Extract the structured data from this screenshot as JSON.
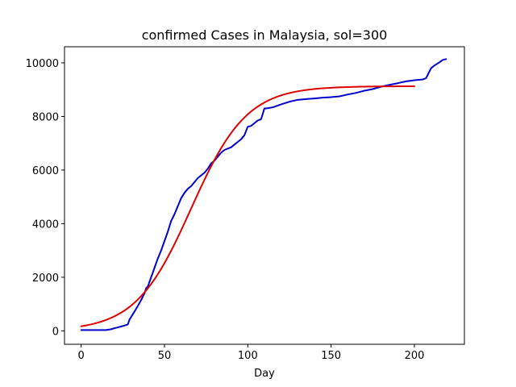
{
  "chart_data": {
    "type": "line",
    "title": "confirmed Cases in Malaysia, sol=300",
    "xlabel": "Day",
    "ylabel": "",
    "xlim": [
      -10,
      230
    ],
    "ylim": [
      -500,
      10600
    ],
    "xticks": [
      0,
      50,
      100,
      150,
      200
    ],
    "yticks": [
      0,
      2000,
      4000,
      6000,
      8000,
      10000
    ],
    "grid": false,
    "legend": "none",
    "series": [
      {
        "color": "#0000cc",
        "x": [
          0,
          5,
          10,
          15,
          18,
          20,
          22,
          25,
          28,
          29,
          30,
          32,
          34,
          36,
          38,
          39,
          40,
          41,
          42,
          44,
          46,
          48,
          50,
          52,
          54,
          56,
          58,
          60,
          62,
          64,
          66,
          68,
          70,
          72,
          74,
          76,
          78,
          80,
          82,
          84,
          86,
          88,
          90,
          92,
          94,
          96,
          98,
          100,
          101,
          102,
          104,
          106,
          108,
          110,
          111,
          112,
          115,
          120,
          125,
          130,
          135,
          140,
          145,
          150,
          155,
          160,
          165,
          170,
          175,
          180,
          185,
          190,
          195,
          200,
          205,
          207,
          208,
          210,
          212,
          215,
          217,
          219
        ],
        "y": [
          30,
          30,
          30,
          30,
          60,
          100,
          130,
          180,
          240,
          420,
          520,
          720,
          930,
          1150,
          1400,
          1590,
          1650,
          1830,
          2000,
          2350,
          2700,
          3000,
          3350,
          3700,
          4100,
          4350,
          4650,
          4950,
          5150,
          5300,
          5400,
          5550,
          5700,
          5800,
          5900,
          6050,
          6250,
          6350,
          6500,
          6650,
          6750,
          6800,
          6850,
          6950,
          7050,
          7150,
          7300,
          7620,
          7630,
          7650,
          7750,
          7850,
          7900,
          8300,
          8300,
          8310,
          8340,
          8450,
          8550,
          8620,
          8650,
          8670,
          8700,
          8720,
          8750,
          8820,
          8880,
          8960,
          9020,
          9110,
          9180,
          9240,
          9310,
          9350,
          9380,
          9430,
          9550,
          9800,
          9900,
          10020,
          10110,
          10140
        ]
      },
      {
        "color": "#dd0000",
        "logistic": {
          "K": 9130,
          "r": 0.06,
          "t0": 66,
          "x_start": 0,
          "x_end": 200,
          "step": 2
        }
      }
    ]
  }
}
